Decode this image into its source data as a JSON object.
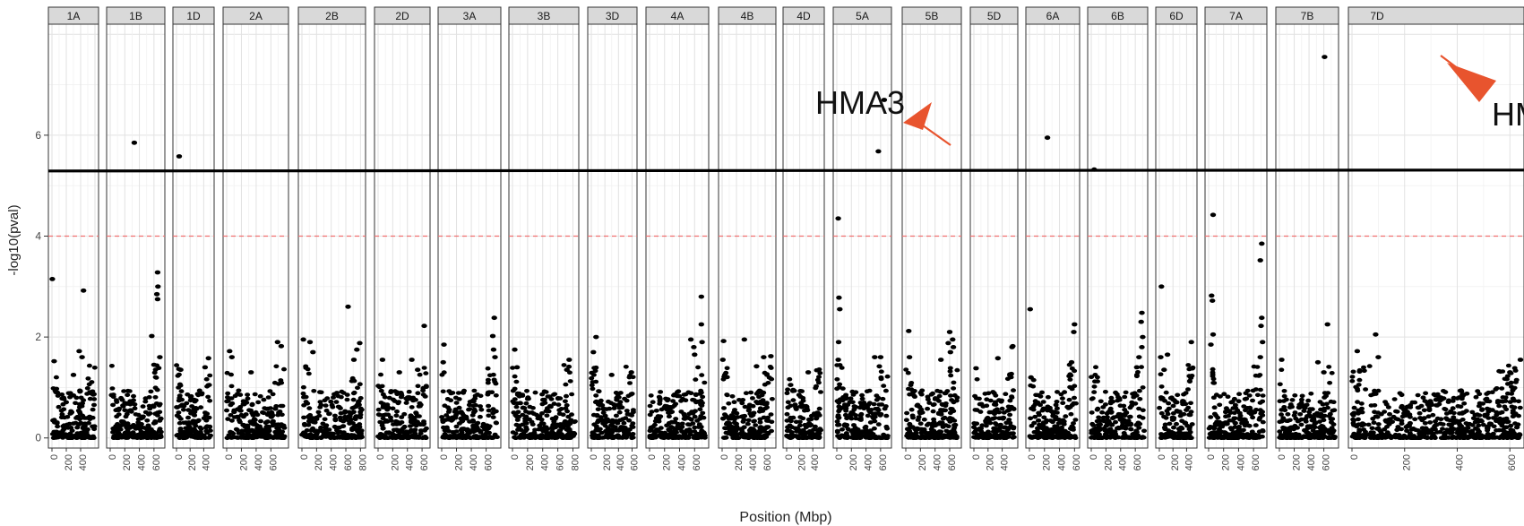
{
  "chart_data": {
    "type": "scatter",
    "title": "",
    "xlabel": "Position (Mbp)",
    "ylabel": "-log10(pval)",
    "ylim": [
      -0.2,
      8.2
    ],
    "y_ticks": [
      0,
      2,
      4,
      6
    ],
    "grid": true,
    "threshold_lines": [
      {
        "y": 5.3,
        "style": "solid",
        "color": "#000000"
      },
      {
        "y": 4.0,
        "style": "dashed",
        "color": "#f07070"
      }
    ],
    "arrow_color": "#e8542e",
    "point_color": "#000000",
    "panels": [
      {
        "label": "1A",
        "xmax": 600,
        "ticks": [
          0,
          200,
          400
        ],
        "peaks": [
          [
            5,
            3.15
          ],
          [
            440,
            2.92
          ],
          [
            380,
            1.72
          ],
          [
            420,
            1.6
          ],
          [
            30,
            1.52
          ],
          [
            300,
            1.25
          ]
        ]
      },
      {
        "label": "1B",
        "xmax": 700,
        "ticks": [
          0,
          200,
          400,
          600
        ],
        "peaks": [
          [
            330,
            5.85
          ],
          [
            650,
            3.28
          ],
          [
            655,
            3.0
          ],
          [
            640,
            2.85
          ],
          [
            650,
            2.75
          ],
          [
            570,
            2.02
          ],
          [
            680,
            1.6
          ],
          [
            600,
            1.45
          ],
          [
            20,
            0.85
          ]
        ]
      },
      {
        "label": "1D",
        "xmax": 500,
        "ticks": [
          0,
          200,
          400
        ],
        "peaks": [
          [
            40,
            5.58
          ],
          [
            470,
            1.58
          ],
          [
            420,
            1.4
          ],
          [
            60,
            1.35
          ]
        ]
      },
      {
        "label": "2A",
        "xmax": 790,
        "ticks": [
          0,
          200,
          400,
          600
        ],
        "peaks": [
          [
            690,
            1.9
          ],
          [
            40,
            1.72
          ],
          [
            70,
            1.6
          ],
          [
            740,
            1.82
          ],
          [
            330,
            1.3
          ]
        ]
      },
      {
        "label": "2B",
        "xmax": 820,
        "ticks": [
          0,
          200,
          400,
          600,
          800
        ],
        "peaks": [
          [
            630,
            2.6
          ],
          [
            20,
            1.95
          ],
          [
            110,
            1.9
          ],
          [
            790,
            1.88
          ],
          [
            750,
            1.75
          ],
          [
            150,
            1.7
          ],
          [
            710,
            1.55
          ]
        ]
      },
      {
        "label": "2D",
        "xmax": 660,
        "ticks": [
          0,
          200,
          400,
          600
        ],
        "peaks": [
          [
            630,
            2.22
          ],
          [
            60,
            1.55
          ],
          [
            460,
            1.55
          ],
          [
            540,
            1.35
          ],
          [
            290,
            1.3
          ]
        ]
      },
      {
        "label": "3A",
        "xmax": 750,
        "ticks": [
          0,
          200,
          400,
          600
        ],
        "peaks": [
          [
            710,
            2.38
          ],
          [
            690,
            2.02
          ],
          [
            30,
            1.85
          ],
          [
            720,
            1.6
          ],
          [
            700,
            1.75
          ],
          [
            20,
            1.5
          ]
        ]
      },
      {
        "label": "3B",
        "xmax": 830,
        "ticks": [
          0,
          200,
          400,
          600,
          800
        ],
        "peaks": [
          [
            30,
            1.75
          ],
          [
            750,
            1.55
          ],
          [
            720,
            1.35
          ],
          [
            60,
            1.4
          ]
        ]
      },
      {
        "label": "3D",
        "xmax": 620,
        "ticks": [
          0,
          200,
          400,
          600
        ],
        "peaks": [
          [
            70,
            2.0
          ],
          [
            30,
            1.7
          ],
          [
            590,
            1.3
          ],
          [
            300,
            1.25
          ]
        ]
      },
      {
        "label": "4A",
        "xmax": 740,
        "ticks": [
          0,
          200,
          400,
          600
        ],
        "peaks": [
          [
            690,
            2.8
          ],
          [
            690,
            2.25
          ],
          [
            550,
            1.95
          ],
          [
            700,
            1.9
          ],
          [
            600,
            1.65
          ],
          [
            590,
            1.8
          ]
        ]
      },
      {
        "label": "4B",
        "xmax": 700,
        "ticks": [
          0,
          200,
          400,
          600
        ],
        "peaks": [
          [
            20,
            1.92
          ],
          [
            310,
            1.95
          ],
          [
            680,
            1.62
          ],
          [
            580,
            1.6
          ],
          [
            10,
            1.55
          ],
          [
            480,
            1.42
          ]
        ]
      },
      {
        "label": "4D",
        "xmax": 520,
        "ticks": [
          0,
          200,
          400
        ],
        "peaks": [
          [
            60,
            1.05
          ],
          [
            330,
            1.3
          ],
          [
            100,
            0.95
          ],
          [
            470,
            0.5
          ]
        ]
      },
      {
        "label": "5A",
        "xmax": 700,
        "ticks": [
          0,
          200,
          400,
          600
        ],
        "peaks": [
          [
            650,
            6.7
          ],
          [
            570,
            5.68
          ],
          [
            20,
            4.35
          ],
          [
            30,
            2.78
          ],
          [
            40,
            2.55
          ],
          [
            25,
            1.9
          ],
          [
            20,
            1.55
          ],
          [
            520,
            1.6
          ],
          [
            600,
            1.6
          ]
        ]
      },
      {
        "label": "5B",
        "xmax": 710,
        "ticks": [
          0,
          200,
          400,
          600
        ],
        "peaks": [
          [
            40,
            2.12
          ],
          [
            600,
            2.1
          ],
          [
            640,
            1.95
          ],
          [
            580,
            1.88
          ],
          [
            650,
            1.8
          ],
          [
            610,
            1.7
          ],
          [
            50,
            1.6
          ],
          [
            480,
            1.55
          ]
        ]
      },
      {
        "label": "5D",
        "xmax": 570,
        "ticks": [
          0,
          200,
          400
        ],
        "peaks": [
          [
            550,
            1.82
          ],
          [
            540,
            1.8
          ],
          [
            340,
            1.58
          ],
          [
            30,
            1.38
          ]
        ]
      },
      {
        "label": "6A",
        "xmax": 620,
        "ticks": [
          0,
          200,
          400,
          600
        ],
        "peaks": [
          [
            240,
            5.95
          ],
          [
            10,
            2.55
          ],
          [
            600,
            2.25
          ],
          [
            590,
            2.1
          ],
          [
            20,
            1.2
          ],
          [
            560,
            1.5
          ]
        ]
      },
      {
        "label": "6B",
        "xmax": 720,
        "ticks": [
          0,
          200,
          400,
          600
        ],
        "peaks": [
          [
            40,
            5.32
          ],
          [
            690,
            2.48
          ],
          [
            680,
            2.3
          ],
          [
            700,
            2.0
          ],
          [
            690,
            1.8
          ],
          [
            650,
            1.6
          ],
          [
            620,
            1.4
          ]
        ]
      },
      {
        "label": "6D",
        "xmax": 500,
        "ticks": [
          0,
          200,
          400
        ],
        "peaks": [
          [
            30,
            3.0
          ],
          [
            470,
            1.9
          ],
          [
            20,
            1.6
          ],
          [
            120,
            1.65
          ],
          [
            70,
            1.35
          ]
        ]
      },
      {
        "label": "7A",
        "xmax": 730,
        "ticks": [
          0,
          200,
          400,
          600
        ],
        "peaks": [
          [
            60,
            4.42
          ],
          [
            710,
            3.85
          ],
          [
            690,
            3.52
          ],
          [
            40,
            2.82
          ],
          [
            50,
            2.72
          ],
          [
            710,
            2.38
          ],
          [
            700,
            2.22
          ],
          [
            60,
            2.05
          ],
          [
            720,
            1.9
          ],
          [
            30,
            1.85
          ],
          [
            690,
            1.6
          ]
        ]
      },
      {
        "label": "7B",
        "xmax": 750,
        "ticks": [
          0,
          200,
          400,
          600
        ],
        "peaks": [
          [
            610,
            7.55
          ],
          [
            650,
            2.25
          ],
          [
            30,
            1.55
          ],
          [
            520,
            1.5
          ],
          [
            600,
            1.3
          ]
        ]
      },
      {
        "label": "7D",
        "xmax": 640,
        "ticks": [
          0,
          200,
          400,
          600
        ],
        "peaks": [
          [
            90,
            2.05
          ],
          [
            20,
            1.72
          ],
          [
            100,
            1.6
          ],
          [
            640,
            1.55
          ],
          [
            600,
            1.3
          ]
        ]
      }
    ],
    "annotations": [
      {
        "text": "HMA3",
        "panel": "5A",
        "points_to": [
          570,
          5.68
        ]
      },
      {
        "text": "HM",
        "panel": "7B",
        "points_to": [
          610,
          7.55
        ]
      }
    ]
  }
}
